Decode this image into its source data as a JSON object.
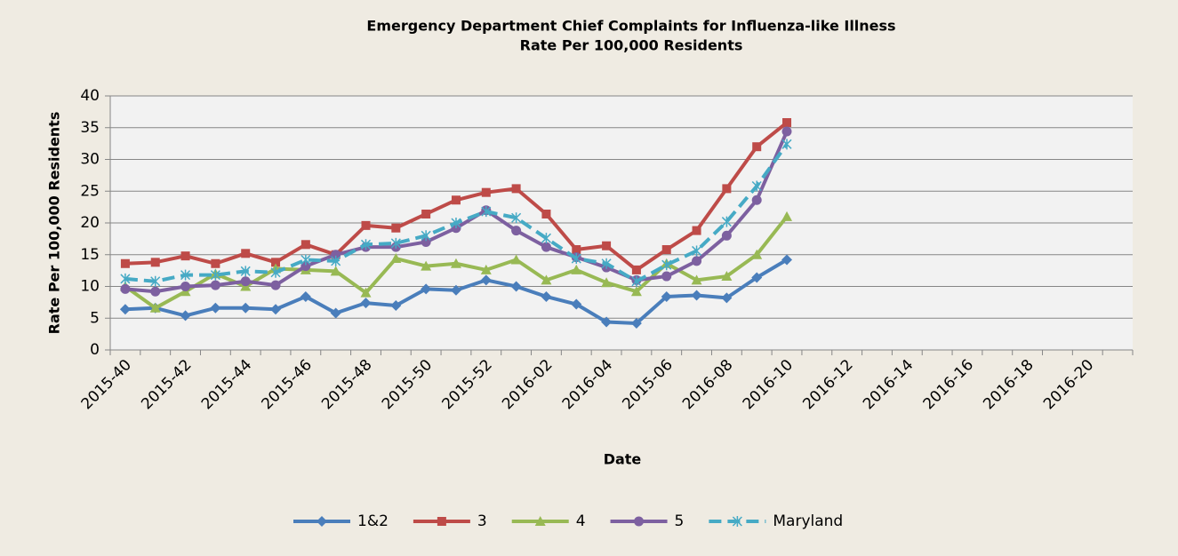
{
  "chart_data": {
    "type": "line",
    "title": "Emergency Department Chief Complaints for Influenza-like Illness",
    "subtitle": "Rate Per 100,000 Residents",
    "x_label": "Date",
    "y_label": "Rate Per 100,000 Residents",
    "categories": [
      "2015-40",
      null,
      "2015-42",
      null,
      "2015-44",
      null,
      "2015-46",
      null,
      "2015-48",
      null,
      "2015-50",
      null,
      "2015-52",
      null,
      "2016-02",
      null,
      "2016-04",
      null,
      "2015-06",
      null,
      "2016-08",
      null,
      "2016-10",
      null,
      "2016-12",
      null,
      "2016-14",
      null,
      "2016-16",
      null,
      "2016-18",
      null,
      "2016-20",
      null
    ],
    "series": [
      {
        "name": "1&2",
        "color": "#4a7ebb",
        "marker": "diamond",
        "dashed": false,
        "values": [
          6.4,
          6.6,
          5.4,
          6.6,
          6.6,
          6.4,
          8.4,
          5.8,
          7.4,
          7.0,
          9.6,
          9.4,
          11.0,
          10.0,
          8.4,
          7.2,
          4.4,
          4.2,
          8.4,
          8.6,
          8.2,
          11.4,
          14.2,
          null,
          null,
          null,
          null,
          null,
          null,
          null,
          null,
          null,
          null,
          null
        ]
      },
      {
        "name": "3",
        "color": "#be4b48",
        "marker": "square",
        "dashed": false,
        "values": [
          13.6,
          13.8,
          14.8,
          13.6,
          15.2,
          13.8,
          16.6,
          15.0,
          19.6,
          19.2,
          21.4,
          23.6,
          24.8,
          25.4,
          21.4,
          15.8,
          16.4,
          12.6,
          15.8,
          18.8,
          25.4,
          32.0,
          35.8,
          null,
          null,
          null,
          null,
          null,
          null,
          null,
          null,
          null,
          null,
          null
        ]
      },
      {
        "name": "4",
        "color": "#98b954",
        "marker": "triangle",
        "dashed": false,
        "values": [
          10.0,
          6.6,
          9.2,
          12.0,
          10.0,
          12.8,
          12.6,
          12.4,
          9.0,
          14.4,
          13.2,
          13.6,
          12.6,
          14.2,
          11.0,
          12.6,
          10.6,
          9.2,
          13.6,
          11.0,
          11.6,
          15.0,
          21.0,
          null,
          null,
          null,
          null,
          null,
          null,
          null,
          null,
          null,
          null,
          null
        ]
      },
      {
        "name": "5",
        "color": "#7d60a0",
        "marker": "circle",
        "dashed": false,
        "values": [
          9.6,
          9.2,
          10.0,
          10.2,
          10.8,
          10.2,
          13.2,
          15.0,
          16.2,
          16.2,
          17.0,
          19.2,
          22.0,
          18.8,
          16.2,
          14.6,
          13.0,
          11.0,
          11.6,
          14.0,
          18.0,
          23.6,
          34.4,
          null,
          null,
          null,
          null,
          null,
          null,
          null,
          null,
          null,
          null,
          null
        ]
      },
      {
        "name": "Maryland",
        "color": "#46aac5",
        "marker": "star",
        "dashed": true,
        "values": [
          11.2,
          10.8,
          11.8,
          11.8,
          12.4,
          12.2,
          14.2,
          14.0,
          16.6,
          16.8,
          18.0,
          20.0,
          21.8,
          20.8,
          17.6,
          14.4,
          13.6,
          10.8,
          13.4,
          15.6,
          20.2,
          25.8,
          32.4,
          null,
          null,
          null,
          null,
          null,
          null,
          null,
          null,
          null,
          null,
          null
        ]
      }
    ],
    "ylim": [
      0,
      40
    ],
    "yticks": [
      0,
      5,
      10,
      15,
      20,
      25,
      30,
      35,
      40
    ],
    "grid": true,
    "legend": "bottom"
  }
}
